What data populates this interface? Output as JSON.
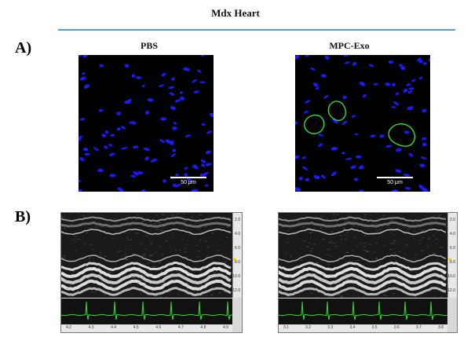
{
  "figure": {
    "title": "Mdx Heart",
    "panel_a_label": "A)",
    "panel_b_label": "B)",
    "groups": [
      {
        "label": "PBS",
        "scale_bar_text": "50 μm",
        "echo_x_ticks": [
          "4.2",
          "4.3",
          "4.4",
          "4.5",
          "4.6",
          "4.7",
          "4.8",
          "4.9"
        ]
      },
      {
        "label": "MPC-Exo",
        "scale_bar_text": "50 μm",
        "echo_x_ticks": [
          "3.1",
          "3.2",
          "3.3",
          "3.4",
          "3.5",
          "3.6",
          "3.7",
          "3.8"
        ]
      }
    ],
    "echo_depth_ticks": [
      "2.0",
      "4.0",
      "6.0",
      "8.0",
      "10.0",
      "12.0"
    ],
    "colors": {
      "rule": "#5b9bd5",
      "nuclei": "#1a1aff",
      "membrane": "#33dd33",
      "ecg": "#33dd33"
    }
  }
}
